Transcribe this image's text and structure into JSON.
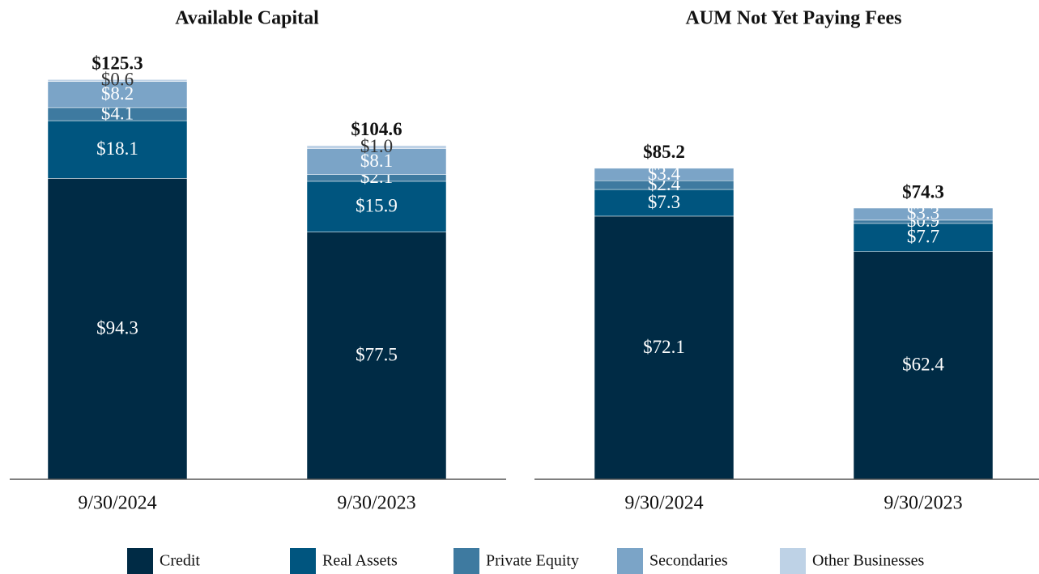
{
  "chart_data": [
    {
      "type": "stacked_bar",
      "title": "Available Capital",
      "categories": [
        "9/30/2024",
        "9/30/2023"
      ],
      "ylim": [
        0,
        135
      ],
      "series": [
        {
          "name": "Credit",
          "color": "#002b45",
          "values": [
            94.3,
            77.5
          ],
          "value_labels": [
            "$94.3",
            "$77.5"
          ]
        },
        {
          "name": "Real Assets",
          "color": "#00557f",
          "values": [
            18.1,
            15.9
          ],
          "value_labels": [
            "$18.1",
            "$15.9"
          ]
        },
        {
          "name": "Private Equity",
          "color": "#3e7aa0",
          "values": [
            4.1,
            2.1
          ],
          "value_labels": [
            "$4.1",
            "$2.1"
          ]
        },
        {
          "name": "Secondaries",
          "color": "#7ba4c7",
          "values": [
            8.2,
            8.1
          ],
          "value_labels": [
            "$8.2",
            "$8.1"
          ]
        },
        {
          "name": "Other Businesses",
          "color": "#bed2e6",
          "values": [
            0.6,
            1.0
          ],
          "value_labels": [
            "$0.6",
            "$1.0"
          ]
        }
      ],
      "totals": [
        125.3,
        104.6
      ],
      "total_labels": [
        "$125.3",
        "$104.6"
      ]
    },
    {
      "type": "stacked_bar",
      "title": "AUM Not Yet Paying Fees",
      "categories": [
        "9/30/2024",
        "9/30/2023"
      ],
      "ylim": [
        0,
        118
      ],
      "series": [
        {
          "name": "Credit",
          "color": "#002b45",
          "values": [
            72.1,
            62.4
          ],
          "value_labels": [
            "$72.1",
            "$62.4"
          ]
        },
        {
          "name": "Real Assets",
          "color": "#00557f",
          "values": [
            7.3,
            7.7
          ],
          "value_labels": [
            "$7.3",
            "$7.7"
          ]
        },
        {
          "name": "Private Equity",
          "color": "#3e7aa0",
          "values": [
            2.4,
            0.9
          ],
          "value_labels": [
            "$2.4",
            "$0.9"
          ]
        },
        {
          "name": "Secondaries",
          "color": "#7ba4c7",
          "values": [
            3.4,
            3.3
          ],
          "value_labels": [
            "$3.4",
            "$3.3"
          ]
        }
      ],
      "totals": [
        85.2,
        74.3
      ],
      "total_labels": [
        "$85.2",
        "$74.3"
      ]
    }
  ]
}
